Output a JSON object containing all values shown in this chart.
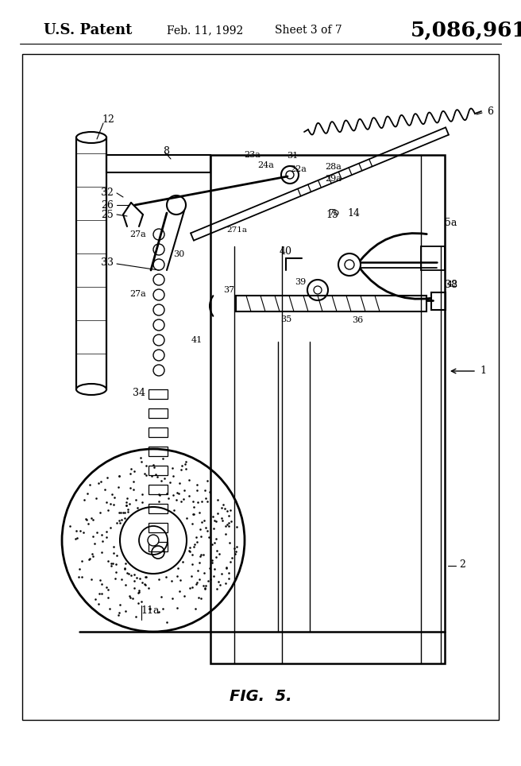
{
  "bg_color": "#ffffff",
  "header_left": "U.S. Patent",
  "header_center": "Feb. 11, 1992",
  "header_sheet": "Sheet 3 of 7",
  "header_number": "5,086,961",
  "figure_label": "FIG.  5."
}
